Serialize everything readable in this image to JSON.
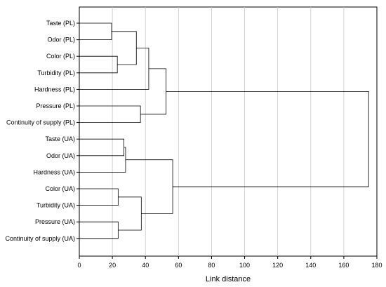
{
  "chart_data": {
    "type": "dendrogram",
    "xlabel": "Link distance",
    "xlim": [
      0,
      180
    ],
    "x_ticks": [
      0,
      20,
      40,
      60,
      80,
      100,
      120,
      140,
      160,
      180
    ],
    "x_tick_labels": [
      "0",
      "20",
      "40",
      "60",
      "80",
      "100",
      "120",
      "140",
      "160",
      "180"
    ],
    "grid": "vertical",
    "leaves": [
      "Taste (PL)",
      "Odor (PL)",
      "Color (PL)",
      "Turbidity (PL)",
      "Hardness (PL)",
      "Pressure (PL)",
      "Continuity of supply (PL)",
      "Taste (UA)",
      "Odor (UA)",
      "Hardness (UA)",
      "Color (UA)",
      "Turbidity (UA)",
      "Pressure (UA)",
      "Continuity of supply (UA)"
    ],
    "merges": [
      {
        "id": "c1",
        "left": "Taste (PL)",
        "right": "Odor (PL)",
        "distance": 19.5
      },
      {
        "id": "c2",
        "left": "Color (PL)",
        "right": "Turbidity (PL)",
        "distance": 23
      },
      {
        "id": "c3",
        "left": "c1",
        "right": "c2",
        "distance": 34.5
      },
      {
        "id": "c4",
        "left": "c3",
        "right": "Hardness (PL)",
        "distance": 42
      },
      {
        "id": "c5",
        "left": "Pressure (PL)",
        "right": "Continuity of supply (PL)",
        "distance": 37
      },
      {
        "id": "c6",
        "left": "c4",
        "right": "c5",
        "distance": 52.5
      },
      {
        "id": "c7",
        "left": "Taste (UA)",
        "right": "Odor (UA)",
        "distance": 27
      },
      {
        "id": "c8",
        "left": "c7",
        "right": "Hardness (UA)",
        "distance": 28
      },
      {
        "id": "c9",
        "left": "Color (UA)",
        "right": "Turbidity (UA)",
        "distance": 23.5
      },
      {
        "id": "c10",
        "left": "Pressure (UA)",
        "right": "Continuity of supply (UA)",
        "distance": 23.5
      },
      {
        "id": "c11",
        "left": "c9",
        "right": "c10",
        "distance": 37.5
      },
      {
        "id": "c12",
        "left": "c8",
        "right": "c11",
        "distance": 56.5
      },
      {
        "id": "c13",
        "left": "c6",
        "right": "c12",
        "distance": 175
      }
    ]
  }
}
